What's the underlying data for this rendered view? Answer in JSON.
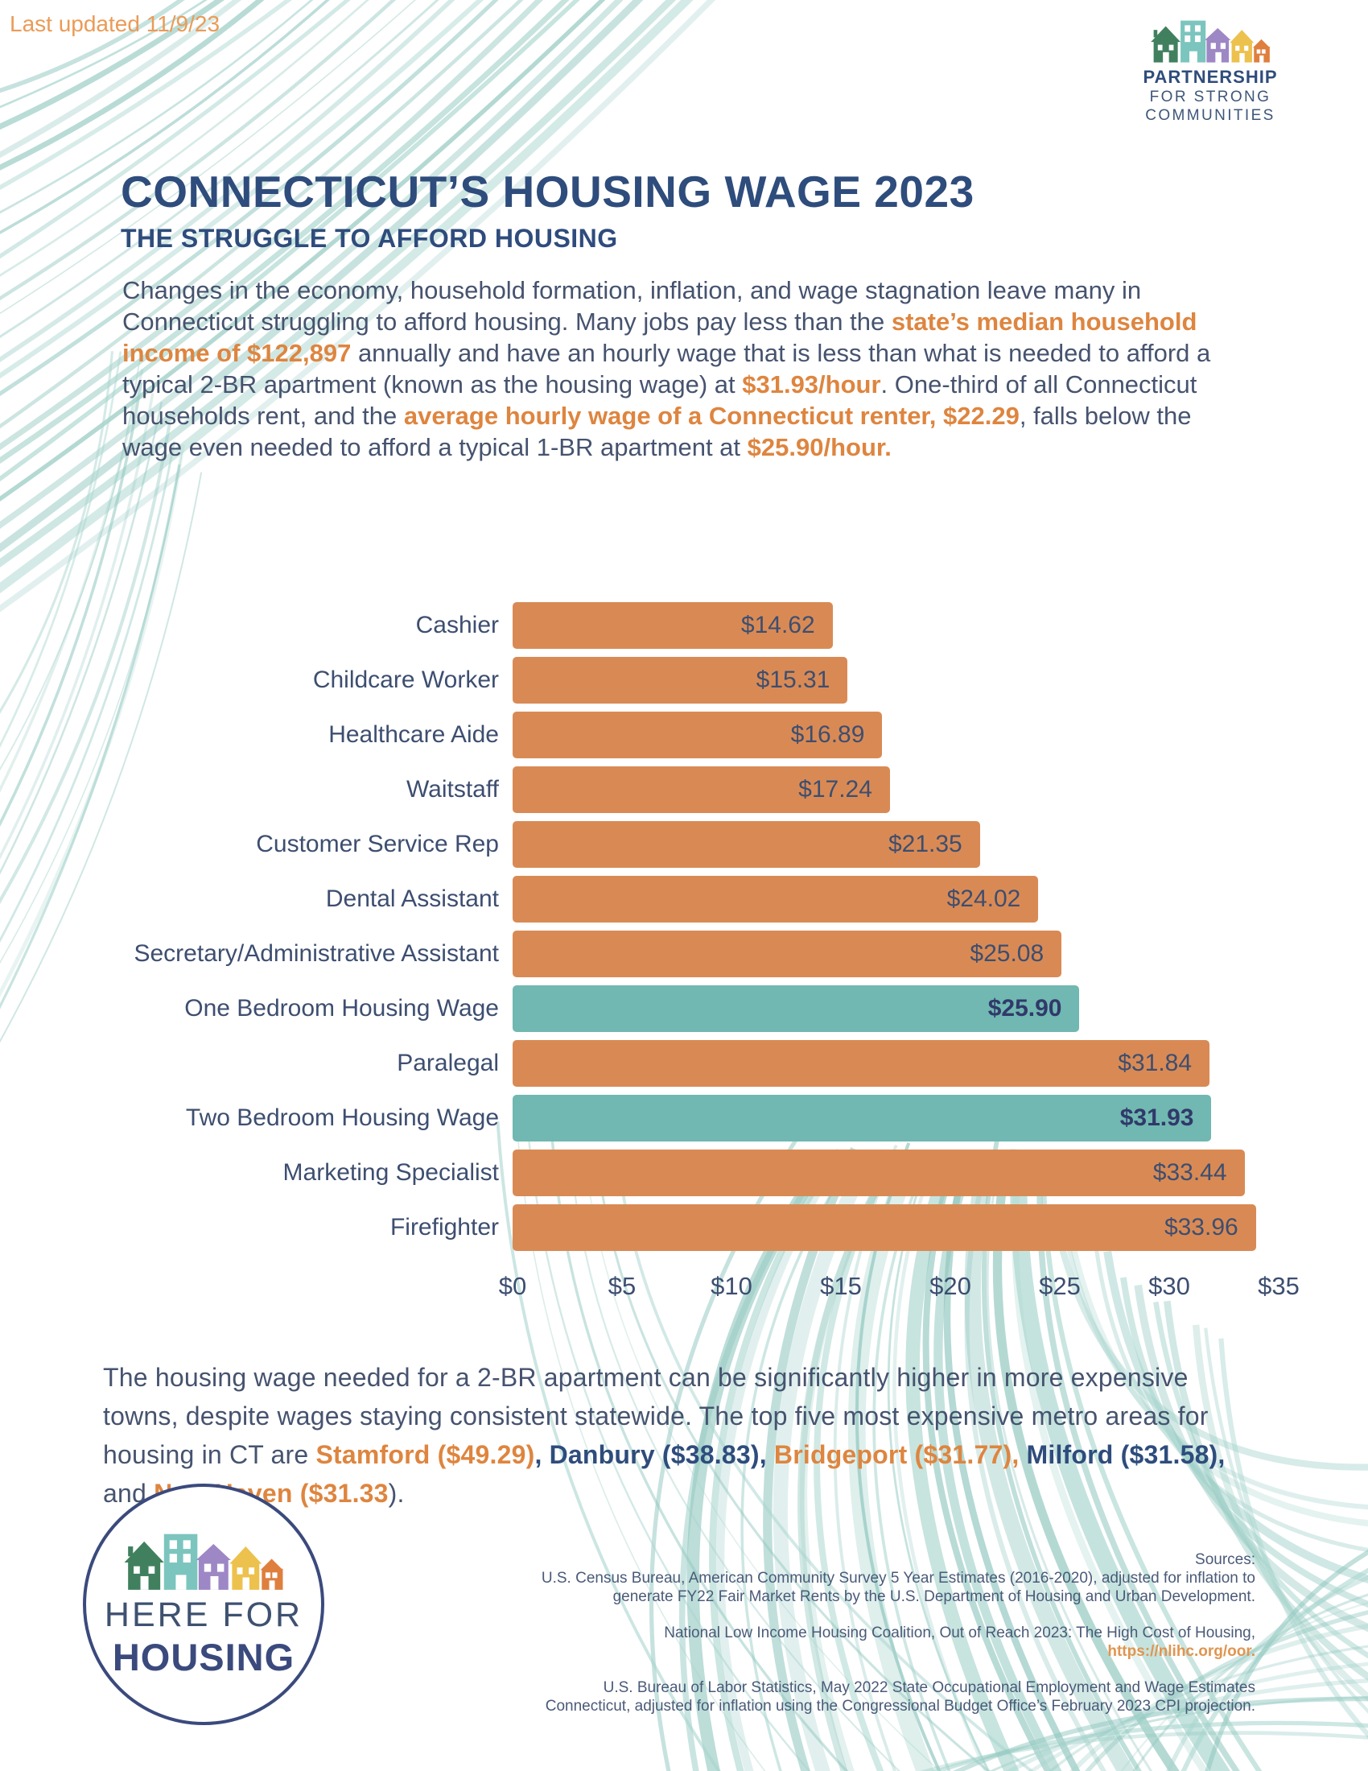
{
  "page": {
    "last_updated": "Last updated 11/9/23"
  },
  "colors": {
    "accent_orange_text": "#DE853F",
    "bar_orange": "#D98A54",
    "bar_teal": "#70B8B1",
    "heading_navy": "#2E4C7C",
    "body_slate": "#46536F",
    "swirl_teal": "#9BCDC6"
  },
  "partnership_logo": {
    "line1": "PARTNERSHIP",
    "line2": "FOR STRONG",
    "line3": "COMMUNITIES"
  },
  "header": {
    "title": "CONNECTICUT’S HOUSING WAGE 2023",
    "subtitle": "THE STRUGGLE TO AFFORD HOUSING"
  },
  "intro": {
    "segments": [
      {
        "t": "Changes in the economy, household formation, inflation, and wage stagnation leave many in Connecticut struggling to afford housing. Many jobs pay less than the ",
        "s": "plain"
      },
      {
        "t": "state’s median household income of $122,897",
        "s": "orange"
      },
      {
        "t": " annually and have an hourly wage that is less than what is needed to afford a typical 2-BR apartment (known as the housing wage) at ",
        "s": "plain"
      },
      {
        "t": "$31.93/hour",
        "s": "orange"
      },
      {
        "t": ". One-third of all Connecticut households rent, and the ",
        "s": "plain"
      },
      {
        "t": "average hourly wage of a Connecticut renter, $22.29",
        "s": "orange"
      },
      {
        "t": ", falls below the wage even needed to afford a typical 1-BR apartment at ",
        "s": "plain"
      },
      {
        "t": "$25.90/hour.",
        "s": "orange"
      }
    ]
  },
  "chart_data": {
    "type": "bar",
    "orientation": "horizontal",
    "categories": [
      "Cashier",
      "Childcare Worker",
      "Healthcare Aide",
      "Waitstaff",
      "Customer Service Rep",
      "Dental Assistant",
      "Secretary/Administrative Assistant",
      "One Bedroom Housing Wage",
      "Paralegal",
      "Two Bedroom Housing Wage",
      "Marketing Specialist",
      "Firefighter"
    ],
    "values": [
      14.62,
      15.31,
      16.89,
      17.24,
      21.35,
      24.02,
      25.08,
      25.9,
      31.84,
      31.93,
      33.44,
      33.96
    ],
    "value_labels": [
      "$14.62",
      "$15.31",
      "$16.89",
      "$17.24",
      "$21.35",
      "$24.02",
      "$25.08",
      "$25.90",
      "$31.84",
      "$31.93",
      "$33.44",
      "$33.96"
    ],
    "highlight": [
      false,
      false,
      false,
      false,
      false,
      false,
      false,
      true,
      false,
      true,
      false,
      false
    ],
    "bar_color": "#D98A54",
    "highlight_color": "#70B8B1",
    "xlim": [
      0,
      35
    ],
    "x_ticks": [
      "$0",
      "$5",
      "$10",
      "$15",
      "$20",
      "$25",
      "$30",
      "$35"
    ],
    "grid": false,
    "legend": false
  },
  "outro": {
    "segments": [
      {
        "t": "The housing wage needed for a 2-BR apartment can be significantly higher in more expensive towns, despite wages staying consistent statewide. The top five most expensive metro areas for housing in CT are ",
        "s": "plain"
      },
      {
        "t": "Stamford ($49.29)",
        "s": "orange"
      },
      {
        "t": ", ",
        "s": "navy"
      },
      {
        "t": "Danbury ($38.83),",
        "s": "navy"
      },
      {
        "t": " ",
        "s": "plain"
      },
      {
        "t": "Bridgeport ($31.77),",
        "s": "orange"
      },
      {
        "t": " ",
        "s": "plain"
      },
      {
        "t": "Milford ($31.58),",
        "s": "navy"
      },
      {
        "t": " and ",
        "s": "plain"
      },
      {
        "t": "New Haven ($31.33",
        "s": "orange"
      },
      {
        "t": ").",
        "s": "plain"
      }
    ]
  },
  "here_for_housing_logo": {
    "line1": "HERE FOR",
    "line2": "HOUSING"
  },
  "sources": {
    "heading": "Sources:",
    "paragraphs": [
      {
        "segments": [
          {
            "t": "U.S. Census Bureau, American Community Survey 5 Year Estimates (2016-2020), adjusted for inflation to\ngenerate FY22 Fair Market Rents by the U.S. Department of Housing and Urban Development.",
            "s": "plain"
          }
        ]
      },
      {
        "segments": [
          {
            "t": "National Low Income Housing Coalition, Out of Reach 2023: The High Cost of Housing,\n",
            "s": "plain"
          },
          {
            "t": "https://nlihc.org/oor.",
            "s": "url"
          }
        ]
      },
      {
        "segments": [
          {
            "t": "U.S. Bureau of Labor Statistics, May 2022 State Occupational Employment and Wage Estimates\nConnecticut, adjusted for inflation using the Congressional Budget Office’s February 2023 CPI projection.",
            "s": "plain"
          }
        ]
      }
    ]
  }
}
